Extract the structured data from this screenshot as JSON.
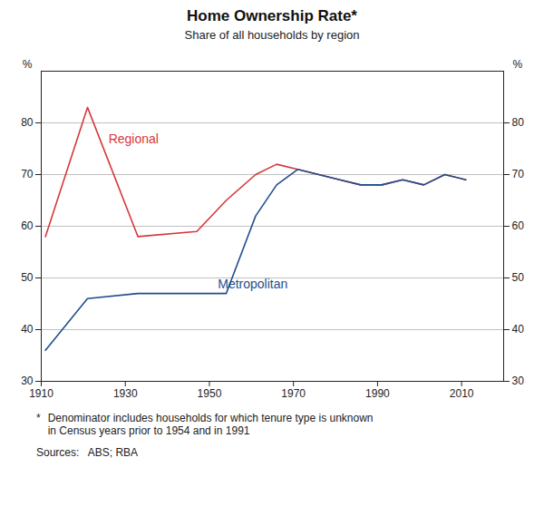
{
  "chart_data": {
    "type": "line",
    "title": "Home Ownership Rate*",
    "subtitle": "Share of all households by region",
    "y_label": "%",
    "y2_label": "%",
    "x": [
      1911,
      1921,
      1933,
      1947,
      1954,
      1961,
      1966,
      1971,
      1976,
      1981,
      1986,
      1991,
      1996,
      2001,
      2006,
      2011
    ],
    "series": [
      {
        "name": "Regional",
        "color": "#d6383a",
        "values": [
          58,
          83,
          58,
          59,
          65,
          70,
          72,
          71,
          70,
          69,
          68,
          68,
          69,
          68,
          70,
          69
        ]
      },
      {
        "name": "Metropolitan",
        "color": "#1f4e8c",
        "values": [
          36,
          46,
          47,
          47,
          47,
          62,
          68,
          71,
          70,
          69,
          68,
          68,
          69,
          68,
          70,
          69
        ]
      }
    ],
    "annotations": [
      {
        "text": "Regional",
        "x": 1926,
        "y": 76
      },
      {
        "text": "Metropolitan",
        "x": 1952,
        "y": 48
      }
    ],
    "xlim": [
      1910,
      2020
    ],
    "xticks": [
      1910,
      1930,
      1950,
      1970,
      1990,
      2010
    ],
    "ylim": [
      30,
      90
    ],
    "yticks": [
      30,
      40,
      50,
      60,
      70,
      80
    ],
    "y2lim": [
      30,
      90
    ],
    "y2ticks": [
      30,
      40,
      50,
      60,
      70,
      80
    ],
    "grid": "y",
    "footnote_marker": "*",
    "footnote": "Denominator includes households for which tenure type is unknown\nin Census years prior to 1954 and in 1991",
    "sources": "Sources:   ABS; RBA"
  }
}
